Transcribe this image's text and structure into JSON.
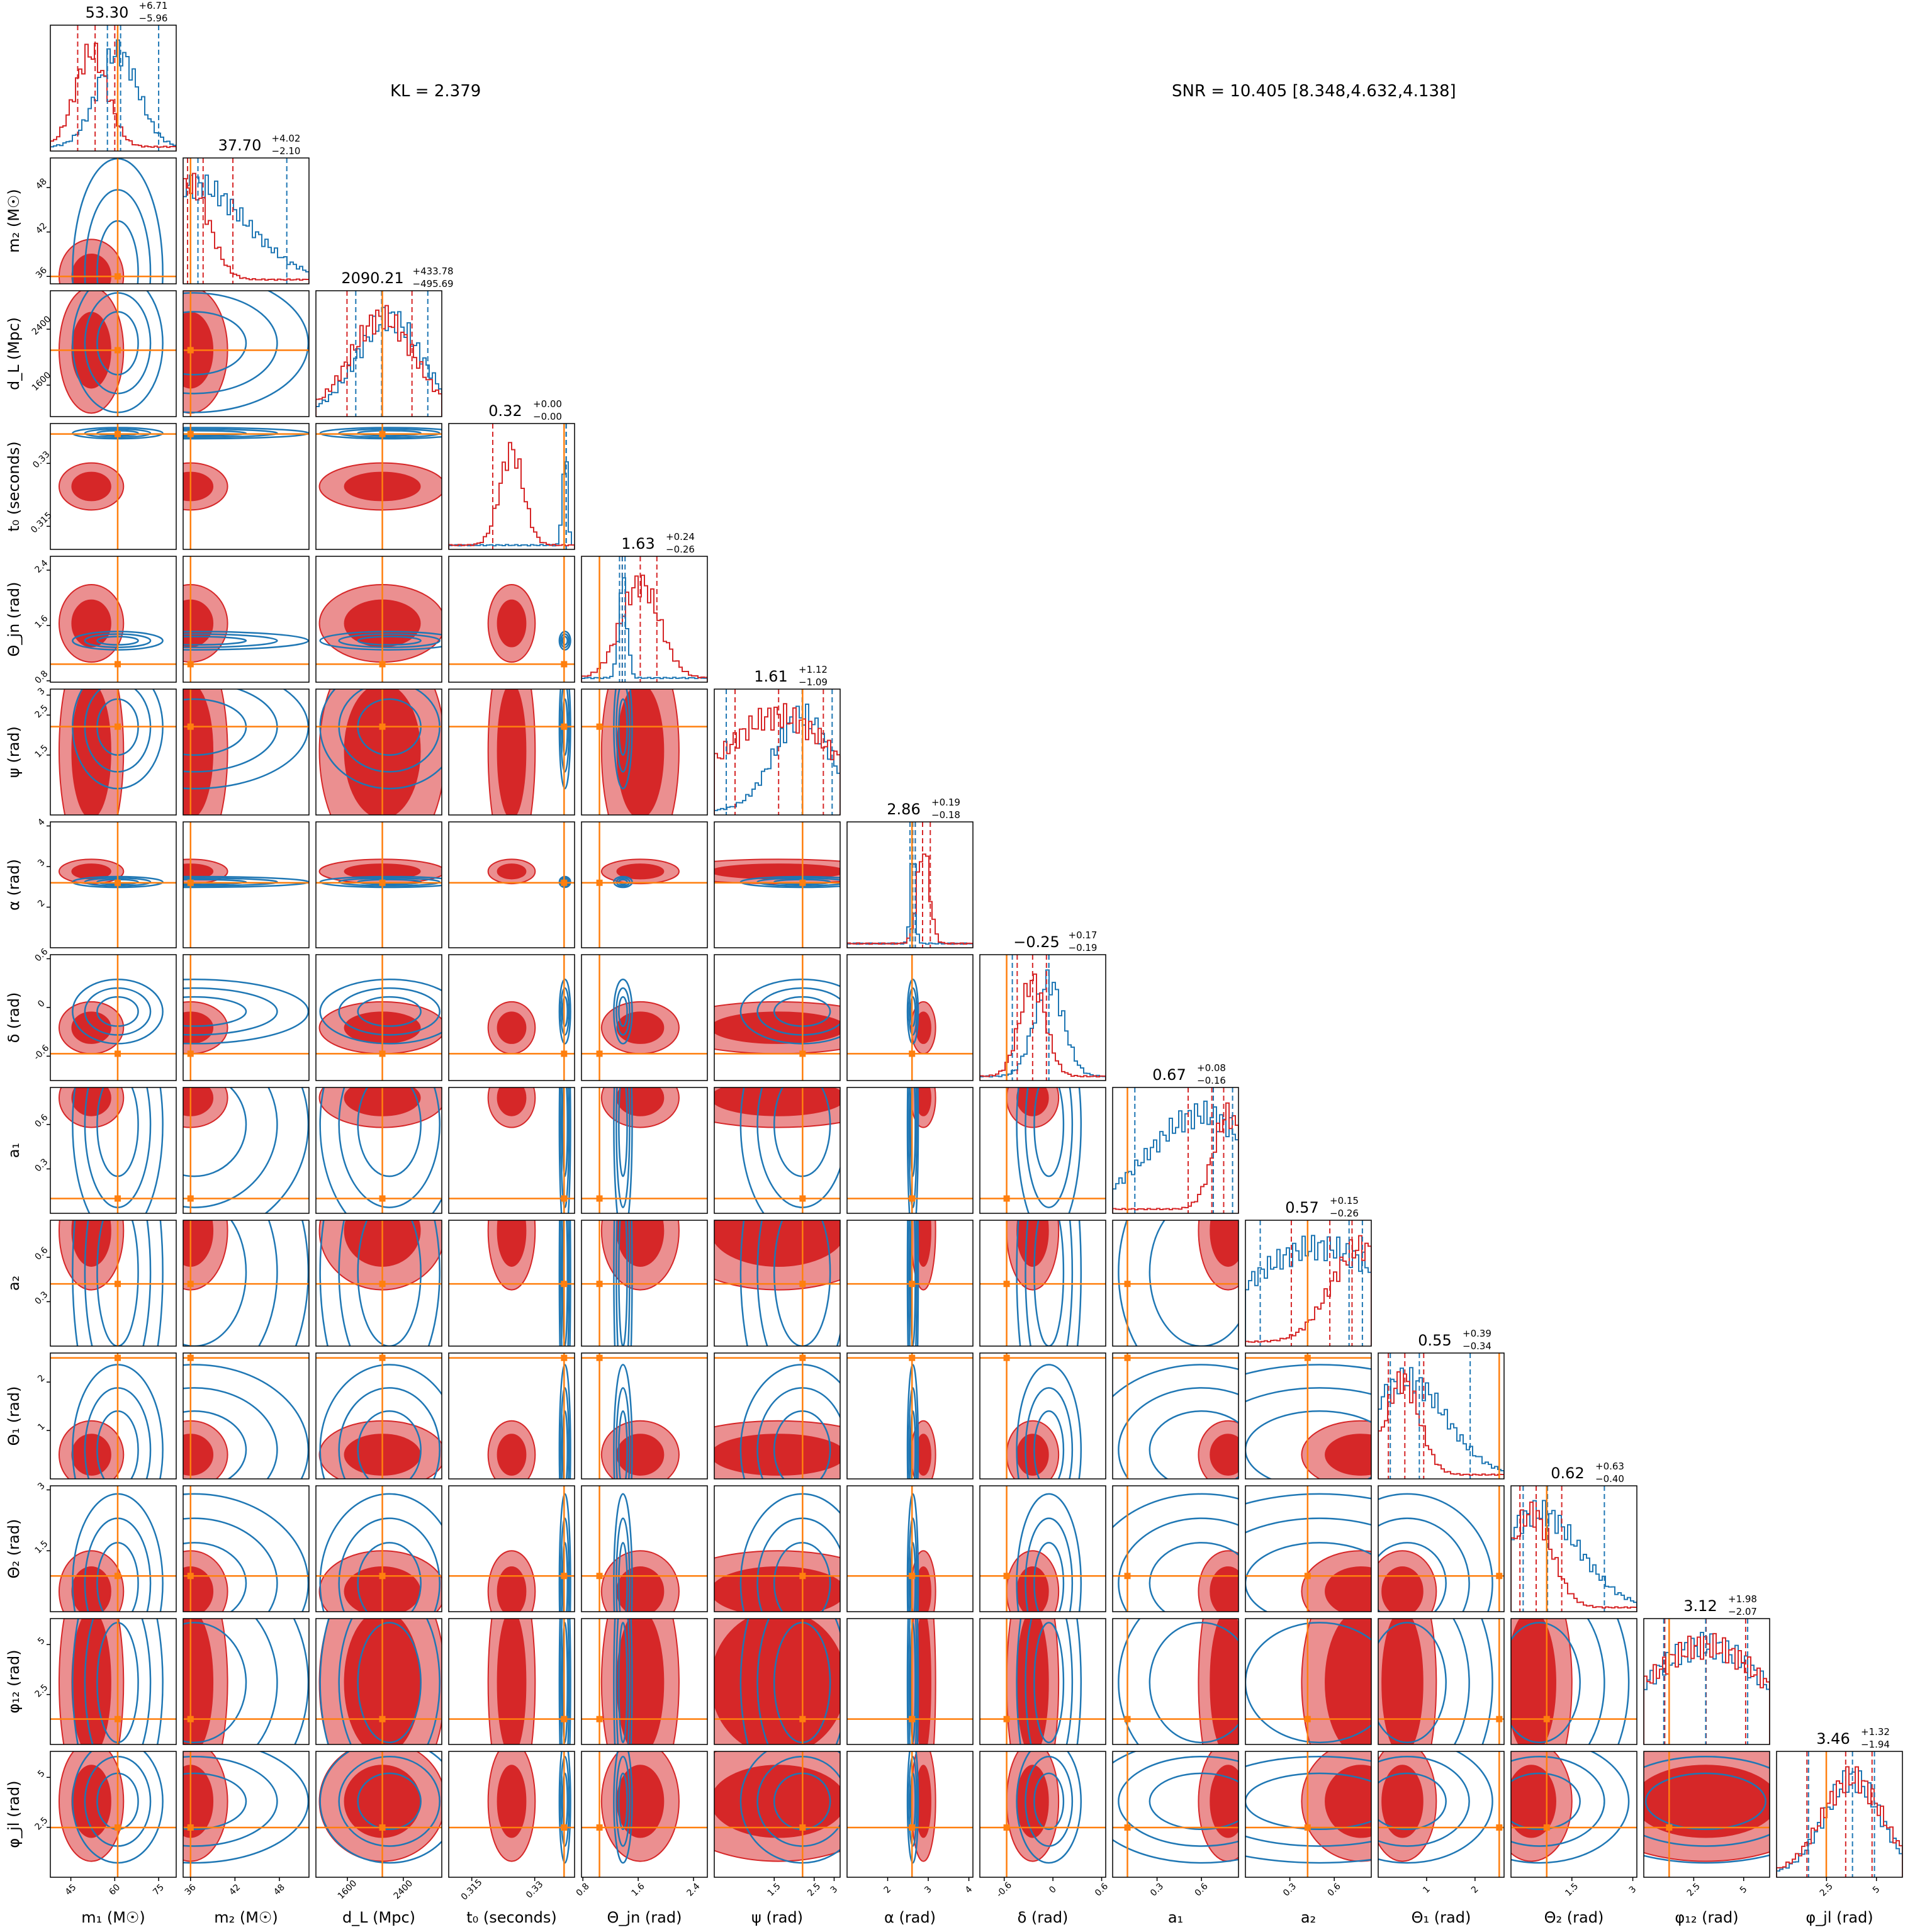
{
  "summary": {
    "kl_text": "KL = 2.379",
    "snr_text": "SNR = 10.405 [8.348,4.632,4.138]"
  },
  "colors": {
    "posterior_red": "#d62728",
    "posterior_red_light": "#eb8f90",
    "reference_blue": "#1f77b4",
    "truth_orange": "#ff7f0e"
  },
  "chart_data": {
    "type": "corner",
    "parameters": [
      {
        "key": "m1",
        "label": "m₁ (M☉)",
        "ticks": [
          45,
          60,
          75
        ],
        "range": [
          38,
          81
        ],
        "truth": 61,
        "median": 53.3,
        "plus": "+6.71",
        "minus": "−5.96",
        "median_text": "53.30",
        "red_mode": 52,
        "red_sd": 5.5,
        "blue_mode": 61,
        "blue_sd": 7,
        "blue_q": [
          57.5,
          62,
          75
        ]
      },
      {
        "key": "m2",
        "label": "m₂ (M☉)",
        "ticks": [
          36,
          42,
          48
        ],
        "range": [
          35,
          52
        ],
        "truth": 36,
        "median": 37.7,
        "plus": "+4.02",
        "minus": "−2.10",
        "median_text": "37.70",
        "red_mode": 36,
        "red_sd": 2.5,
        "blue_mode": 36.5,
        "blue_sd": 7,
        "blue_q": [
          36,
          37,
          49
        ]
      },
      {
        "key": "dL",
        "label": "d_L (Mpc)",
        "ticks": [
          1600,
          2400
        ],
        "range": [
          1150,
          2950
        ],
        "truth": 2100,
        "median": 2090.21,
        "plus": "+433.78",
        "minus": "−495.69",
        "median_text": "2090.21",
        "red_mode": 2100,
        "red_sd": 450,
        "blue_mode": 2200,
        "blue_sd": 450,
        "blue_q": [
          1720,
          2090,
          2750
        ]
      },
      {
        "key": "t0",
        "label": "t₀ (seconds)",
        "ticks": [
          0.315,
          0.33
        ],
        "range": [
          0.3095,
          0.3395
        ],
        "truth": 0.337,
        "median": 0.32,
        "plus": "+0.00",
        "minus": "−0.00",
        "median_text": "0.32",
        "red_mode": 0.3245,
        "red_sd": 0.0028,
        "blue_mode": 0.3372,
        "blue_sd": 0.0006,
        "blue_q": [
          0.3375,
          0.3375,
          0.3375
        ]
      },
      {
        "key": "theta_jn",
        "label": "Θ_jn (rad)",
        "ticks": [
          0.8,
          1.6,
          2.4
        ],
        "range": [
          0.78,
          2.6
        ],
        "truth": 1.04,
        "median": 1.63,
        "plus": "+0.24",
        "minus": "−0.26",
        "median_text": "1.63",
        "red_mode": 1.63,
        "red_sd": 0.28,
        "blue_mode": 1.38,
        "blue_sd": 0.06,
        "blue_q": [
          1.33,
          1.37,
          1.41
        ]
      },
      {
        "key": "psi",
        "label": "ψ (rad)",
        "ticks": [
          1.5,
          2.5,
          3.0
        ],
        "range": [
          0.0,
          3.15
        ],
        "truth": 2.21,
        "median": 1.61,
        "plus": "+1.12",
        "minus": "−1.09",
        "median_text": "1.61",
        "red_mode": 1.6,
        "red_sd": 1.4,
        "blue_mode": 2.2,
        "blue_sd": 0.7,
        "blue_q": [
          0.3,
          2.2,
          2.95
        ]
      },
      {
        "key": "alpha",
        "label": "α (rad)",
        "ticks": [
          2,
          3,
          4
        ],
        "range": [
          1.0,
          4.1
        ],
        "truth": 2.6,
        "median": 2.86,
        "plus": "+0.19",
        "minus": "−0.18",
        "median_text": "2.86",
        "red_mode": 2.88,
        "red_sd": 0.15,
        "blue_mode": 2.62,
        "blue_sd": 0.06,
        "blue_q": [
          2.55,
          2.62,
          2.68
        ]
      },
      {
        "key": "delta",
        "label": "δ (rad)",
        "ticks": [
          -0.6,
          0.0,
          0.6
        ],
        "range": [
          -0.9,
          0.65
        ],
        "truth": -0.57,
        "median": -0.25,
        "plus": "+0.17",
        "minus": "−0.19",
        "median_text": "−0.25",
        "red_mode": -0.25,
        "red_sd": 0.16,
        "blue_mode": -0.05,
        "blue_sd": 0.18,
        "blue_q": [
          -0.5,
          -0.05,
          -0.05
        ]
      },
      {
        "key": "a1",
        "label": "a₁",
        "ticks": [
          0.3,
          0.6
        ],
        "range": [
          0.0,
          0.85
        ],
        "truth": 0.1,
        "median": 0.67,
        "plus": "+0.08",
        "minus": "−0.16",
        "median_text": "0.67",
        "red_mode": 0.78,
        "red_sd": 0.1,
        "blue_mode": 0.6,
        "blue_sd": 0.35,
        "blue_q": [
          0.15,
          0.68,
          0.81
        ]
      },
      {
        "key": "a2",
        "label": "a₂",
        "ticks": [
          0.3,
          0.6
        ],
        "range": [
          0.0,
          0.85
        ],
        "truth": 0.42,
        "median": 0.57,
        "plus": "+0.15",
        "minus": "−0.26",
        "median_text": "0.57",
        "red_mode": 0.78,
        "red_sd": 0.2,
        "blue_mode": 0.5,
        "blue_sd": 0.5,
        "blue_q": [
          0.1,
          0.7,
          0.79
        ]
      },
      {
        "key": "theta1",
        "label": "Θ₁ (rad)",
        "ticks": [
          1,
          2
        ],
        "range": [
          0.0,
          2.6
        ],
        "truth": 2.5,
        "median": 0.55,
        "plus": "+0.39",
        "minus": "−0.34",
        "median_text": "0.55",
        "red_mode": 0.5,
        "red_sd": 0.35,
        "blue_mode": 0.6,
        "blue_sd": 0.8,
        "blue_q": [
          0.25,
          0.85,
          1.9
        ]
      },
      {
        "key": "theta2",
        "label": "Θ₂ (rad)",
        "ticks": [
          1.5,
          3.0
        ],
        "range": [
          0.0,
          3.1
        ],
        "truth": 0.88,
        "median": 0.62,
        "plus": "+0.63",
        "minus": "−0.40",
        "median_text": "0.62",
        "red_mode": 0.5,
        "red_sd": 0.5,
        "blue_mode": 0.7,
        "blue_sd": 1.0,
        "blue_q": [
          0.3,
          0.9,
          2.3
        ]
      },
      {
        "key": "phi12",
        "label": "φ₁₂ (rad)",
        "ticks": [
          2.5,
          5.0
        ],
        "range": [
          0.0,
          6.3
        ],
        "truth": 1.27,
        "median": 3.12,
        "plus": "+1.98",
        "minus": "−2.07",
        "median_text": "3.12",
        "red_mode": 3.1,
        "red_sd": 3.0,
        "blue_mode": 3.1,
        "blue_sd": 3.0,
        "blue_q": [
          1.0,
          3.1,
          5.2
        ]
      },
      {
        "key": "phijl",
        "label": "φ_jl (rad)",
        "ticks": [
          2.5,
          5.0
        ],
        "range": [
          0.0,
          6.3
        ],
        "truth": 2.49,
        "median": 3.46,
        "plus": "+1.32",
        "minus": "−1.94",
        "median_text": "3.46",
        "red_mode": 3.8,
        "red_sd": 1.5,
        "blue_mode": 3.8,
        "blue_sd": 1.4,
        "blue_q": [
          1.6,
          3.8,
          4.9
        ]
      }
    ]
  }
}
